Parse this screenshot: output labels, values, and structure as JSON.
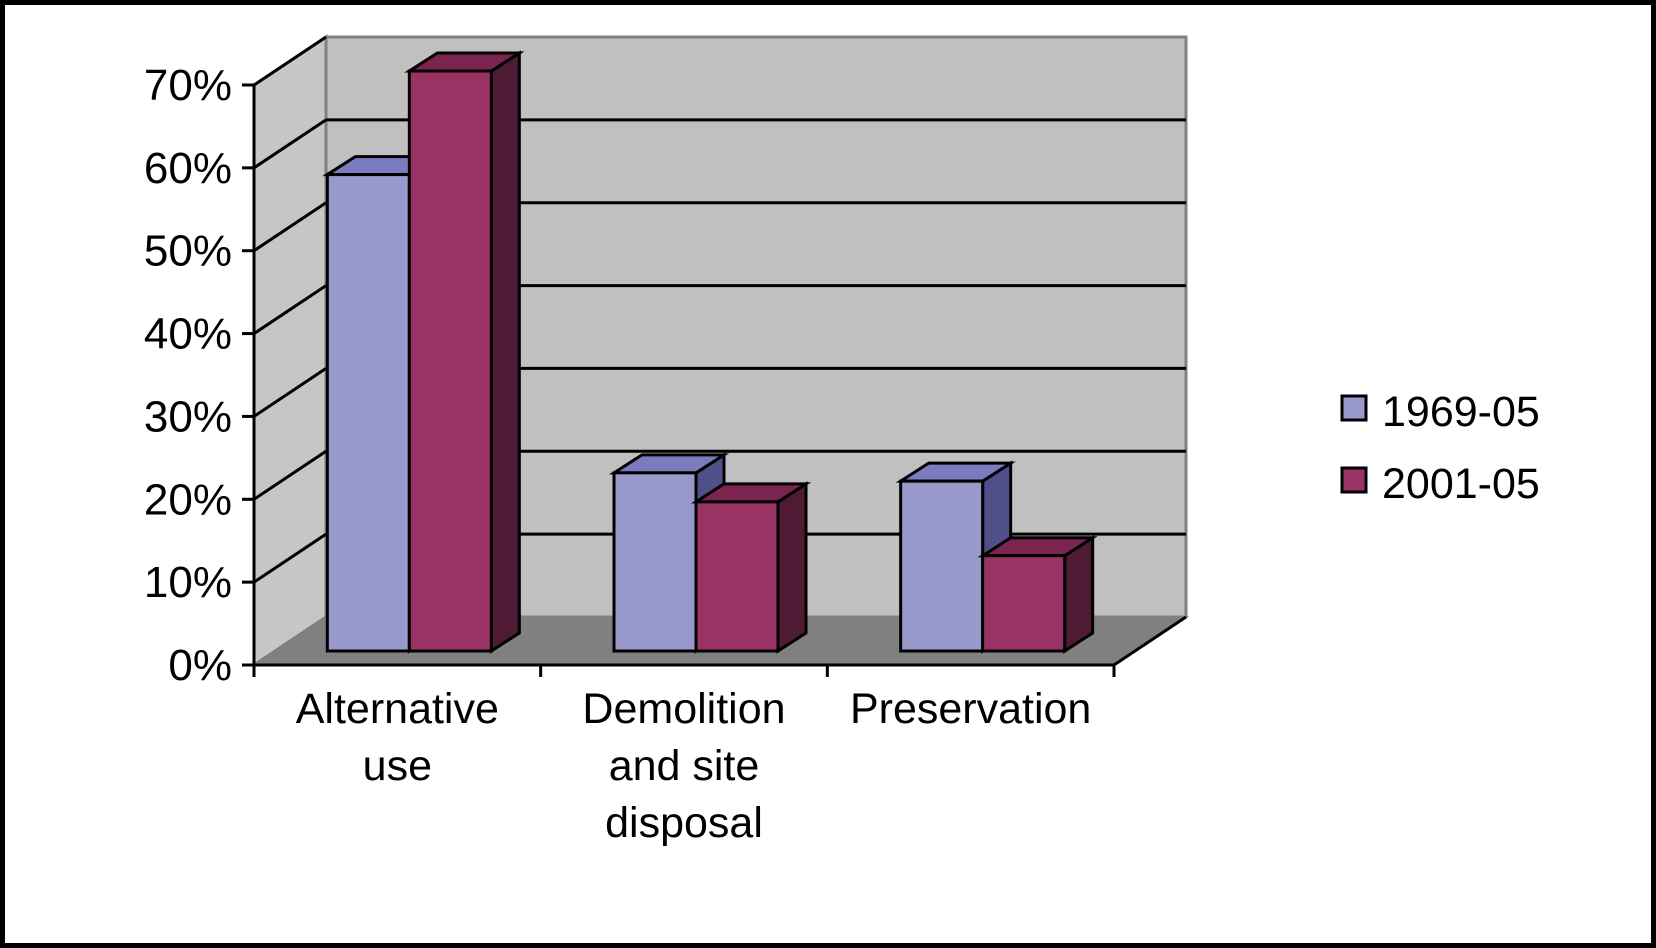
{
  "chart_data": {
    "type": "bar",
    "style": "3d-clustered-column",
    "categories": [
      [
        "Alternative",
        "use"
      ],
      [
        "Demolition",
        "and site",
        "disposal"
      ],
      [
        "Preservation"
      ]
    ],
    "series": [
      {
        "name": "1969-05",
        "values": [
          57.5,
          21.5,
          20.5
        ]
      },
      {
        "name": "2001-05",
        "values": [
          70,
          18,
          11.5
        ]
      }
    ],
    "ylim": [
      0,
      70
    ],
    "yticks": [
      0,
      10,
      20,
      30,
      40,
      50,
      60,
      70
    ],
    "ytick_labels": [
      "0%",
      "10%",
      "20%",
      "30%",
      "40%",
      "50%",
      "60%",
      "70%"
    ],
    "grid": true,
    "legend_position": "right",
    "colors": {
      "series_front": [
        "#9999cc",
        "#993366"
      ],
      "series_side": [
        "#4f4f8a",
        "#4f1a33"
      ],
      "series_top": [
        "#7b7bbf",
        "#7c2450"
      ],
      "back_wall": "#c0c0c0",
      "side_wall": "#c6c6c6",
      "floor": "#808080",
      "gridline": "#000000"
    }
  }
}
